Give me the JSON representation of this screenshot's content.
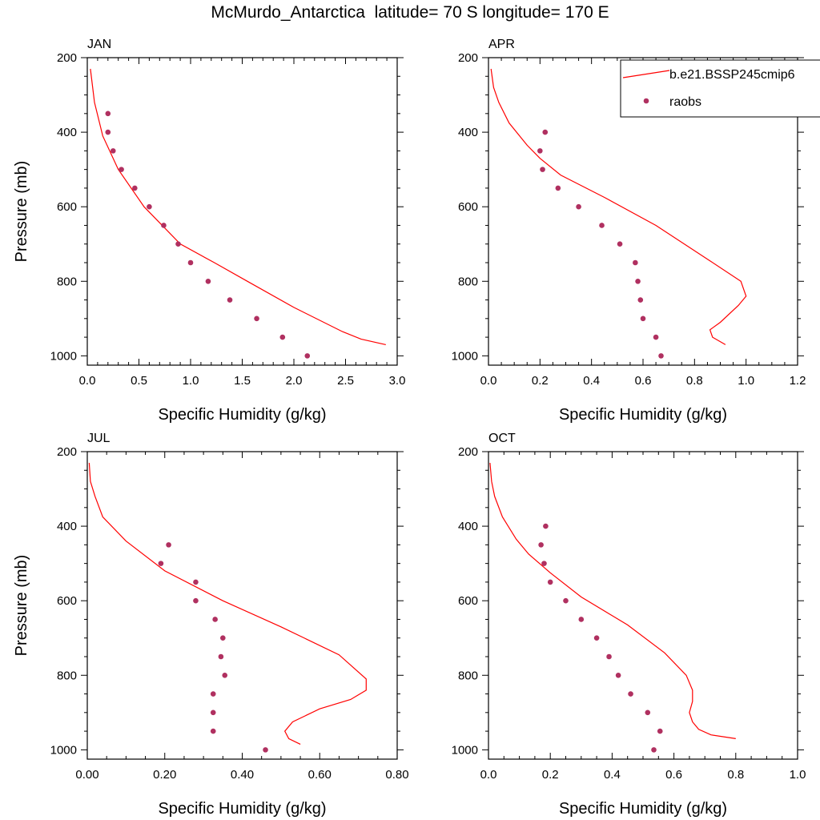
{
  "figure": {
    "title": "McMurdo_Antarctica  latitude= 70 S longitude= 170 E"
  },
  "colors": {
    "model_line": "#ff0000",
    "raobs_marker": "#b03060"
  },
  "legend": {
    "placement": "top-right of APR panel",
    "entries": [
      {
        "label": "b.e21.BSSP245cmip6",
        "kind": "line"
      },
      {
        "label": "raobs",
        "kind": "marker"
      }
    ]
  },
  "chart_data": [
    {
      "type": "line",
      "title": "JAN",
      "xlabel": "Specific Humidity (g/kg)",
      "ylabel": "Pressure (mb)",
      "xlim": [
        0,
        3.0
      ],
      "ylim": [
        200,
        1025
      ],
      "y_reversed": true,
      "xticks": [
        "0.0",
        "0.5",
        "1.0",
        "1.5",
        "2.0",
        "2.5",
        "3.0"
      ],
      "yticks": [
        "200",
        "400",
        "600",
        "800",
        "1000"
      ],
      "series": [
        {
          "kind": "line",
          "values": [
            [
              0.03,
              230
            ],
            [
              0.07,
              320
            ],
            [
              0.15,
              410
            ],
            [
              0.3,
              500
            ],
            [
              0.55,
              600
            ],
            [
              0.9,
              700
            ],
            [
              1.23,
              750
            ],
            [
              1.55,
              800
            ],
            [
              2.0,
              870
            ],
            [
              2.47,
              935
            ],
            [
              2.65,
              955
            ],
            [
              2.89,
              970
            ]
          ]
        },
        {
          "kind": "points",
          "values": [
            [
              0.2,
              350
            ],
            [
              0.2,
              400
            ],
            [
              0.25,
              450
            ],
            [
              0.33,
              500
            ],
            [
              0.46,
              550
            ],
            [
              0.6,
              600
            ],
            [
              0.74,
              650
            ],
            [
              0.88,
              700
            ],
            [
              1.0,
              750
            ],
            [
              1.17,
              800
            ],
            [
              1.38,
              850
            ],
            [
              1.64,
              900
            ],
            [
              1.89,
              950
            ],
            [
              2.13,
              1000
            ]
          ]
        }
      ]
    },
    {
      "type": "line",
      "title": "APR",
      "xlabel": "Specific Humidity (g/kg)",
      "ylabel": "",
      "xlim": [
        0,
        1.2
      ],
      "ylim": [
        200,
        1025
      ],
      "y_reversed": true,
      "xticks": [
        "0.0",
        "0.2",
        "0.4",
        "0.6",
        "0.8",
        "1.0",
        "1.2"
      ],
      "yticks": [
        "200",
        "400",
        "600",
        "800",
        "1000"
      ],
      "series": [
        {
          "kind": "line",
          "values": [
            [
              0.01,
              230
            ],
            [
              0.02,
              280
            ],
            [
              0.04,
              320
            ],
            [
              0.08,
              375
            ],
            [
              0.15,
              435
            ],
            [
              0.2,
              470
            ],
            [
              0.28,
              515
            ],
            [
              0.45,
              575
            ],
            [
              0.65,
              650
            ],
            [
              0.86,
              745
            ],
            [
              0.98,
              800
            ],
            [
              1.0,
              840
            ],
            [
              0.97,
              865
            ],
            [
              0.9,
              910
            ],
            [
              0.86,
              930
            ],
            [
              0.87,
              950
            ],
            [
              0.92,
              970
            ]
          ]
        },
        {
          "kind": "points",
          "values": [
            [
              0.22,
              400
            ],
            [
              0.2,
              450
            ],
            [
              0.21,
              500
            ],
            [
              0.27,
              550
            ],
            [
              0.35,
              600
            ],
            [
              0.44,
              650
            ],
            [
              0.51,
              700
            ],
            [
              0.57,
              750
            ],
            [
              0.58,
              800
            ],
            [
              0.59,
              850
            ],
            [
              0.6,
              900
            ],
            [
              0.65,
              950
            ],
            [
              0.67,
              1000
            ]
          ]
        }
      ]
    },
    {
      "type": "line",
      "title": "JUL",
      "xlabel": "Specific Humidity (g/kg)",
      "ylabel": "Pressure (mb)",
      "xlim": [
        0,
        0.8
      ],
      "ylim": [
        200,
        1025
      ],
      "y_reversed": true,
      "xticks": [
        "0.00",
        "0.20",
        "0.40",
        "0.60",
        "0.80"
      ],
      "yticks": [
        "200",
        "400",
        "600",
        "800",
        "1000"
      ],
      "series": [
        {
          "kind": "line",
          "values": [
            [
              0.005,
              230
            ],
            [
              0.008,
              280
            ],
            [
              0.02,
              320
            ],
            [
              0.04,
              375
            ],
            [
              0.1,
              440
            ],
            [
              0.2,
              520
            ],
            [
              0.35,
              600
            ],
            [
              0.5,
              670
            ],
            [
              0.65,
              745
            ],
            [
              0.72,
              810
            ],
            [
              0.72,
              840
            ],
            [
              0.68,
              865
            ],
            [
              0.6,
              890
            ],
            [
              0.53,
              925
            ],
            [
              0.51,
              950
            ],
            [
              0.52,
              970
            ],
            [
              0.55,
              985
            ]
          ]
        },
        {
          "kind": "points",
          "values": [
            [
              0.21,
              450
            ],
            [
              0.19,
              500
            ],
            [
              0.28,
              550
            ],
            [
              0.28,
              600
            ],
            [
              0.33,
              650
            ],
            [
              0.35,
              700
            ],
            [
              0.345,
              750
            ],
            [
              0.355,
              800
            ],
            [
              0.325,
              850
            ],
            [
              0.325,
              900
            ],
            [
              0.325,
              950
            ],
            [
              0.46,
              1000
            ]
          ]
        }
      ]
    },
    {
      "type": "line",
      "title": "OCT",
      "xlabel": "Specific Humidity (g/kg)",
      "ylabel": "",
      "xlim": [
        0,
        1.0
      ],
      "ylim": [
        200,
        1025
      ],
      "y_reversed": true,
      "xticks": [
        "0.0",
        "0.2",
        "0.4",
        "0.6",
        "0.8",
        "1.0"
      ],
      "yticks": [
        "200",
        "400",
        "600",
        "800",
        "1000"
      ],
      "series": [
        {
          "kind": "line",
          "values": [
            [
              0.005,
              230
            ],
            [
              0.01,
              280
            ],
            [
              0.02,
              320
            ],
            [
              0.045,
              375
            ],
            [
              0.09,
              435
            ],
            [
              0.13,
              475
            ],
            [
              0.2,
              525
            ],
            [
              0.3,
              590
            ],
            [
              0.45,
              665
            ],
            [
              0.57,
              740
            ],
            [
              0.64,
              800
            ],
            [
              0.66,
              840
            ],
            [
              0.66,
              870
            ],
            [
              0.65,
              900
            ],
            [
              0.66,
              925
            ],
            [
              0.68,
              945
            ],
            [
              0.72,
              960
            ],
            [
              0.8,
              970
            ]
          ]
        },
        {
          "kind": "points",
          "values": [
            [
              0.185,
              400
            ],
            [
              0.17,
              450
            ],
            [
              0.18,
              500
            ],
            [
              0.2,
              550
            ],
            [
              0.25,
              600
            ],
            [
              0.3,
              650
            ],
            [
              0.35,
              700
            ],
            [
              0.39,
              750
            ],
            [
              0.42,
              800
            ],
            [
              0.46,
              850
            ],
            [
              0.515,
              900
            ],
            [
              0.555,
              950
            ],
            [
              0.535,
              1000
            ]
          ]
        }
      ]
    }
  ]
}
